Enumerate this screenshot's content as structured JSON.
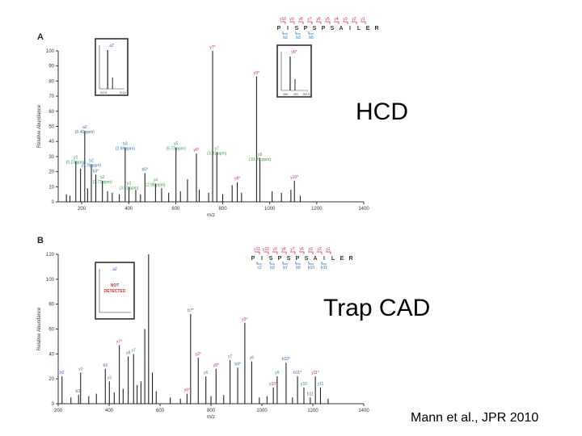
{
  "labels": {
    "hcd": "HCD",
    "trap_cad": "Trap CAD",
    "citation": "Mann et al., JPR 2010"
  },
  "colors": {
    "blue": "#2a6fb8",
    "green": "#2e9a3a",
    "red": "#cc3333",
    "black": "#222222"
  },
  "chart_data": [
    {
      "type": "bar",
      "panel": "A",
      "xlabel": "m/z",
      "ylabel": "Relative Abundance",
      "xlim": [
        100,
        1400
      ],
      "ylim": [
        0,
        100
      ],
      "xticks": [
        "200",
        "400",
        "600",
        "800",
        "1000",
        "1200",
        "1400"
      ],
      "yticks": [
        "0",
        "10",
        "20",
        "30",
        "40",
        "50",
        "60",
        "70",
        "80",
        "90",
        "100"
      ],
      "peptide": [
        "P",
        "I",
        "S",
        "P",
        "S",
        "P",
        "S",
        "A",
        "I",
        "L",
        "E",
        "R"
      ],
      "y_ions_top": [
        "y10",
        "y9",
        "y8",
        "y7",
        "y6",
        "y5",
        "y4",
        "y3",
        "y2",
        "y1"
      ],
      "b_ions_bottom": [
        "b2",
        "b3",
        "b5"
      ],
      "peaks": [
        {
          "mz": 175,
          "h": 27,
          "label": "y1",
          "sub": "(0.23 ppm)",
          "color": "green"
        },
        {
          "mz": 213,
          "h": 47,
          "label": "a2",
          "sub": "(0.45 ppm)",
          "color": "blue"
        },
        {
          "mz": 241,
          "h": 25,
          "label": "b2",
          "sub": "(0.76 ppm)",
          "color": "blue"
        },
        {
          "mz": 288,
          "h": 14,
          "label": "y2",
          "sub": "(3.72 ppm)",
          "color": "green"
        },
        {
          "mz": 260,
          "h": 18,
          "label": "b3*",
          "sub": "",
          "color": "blue"
        },
        {
          "mz": 385,
          "h": 36,
          "label": "b3",
          "sub": "(2.69 ppm)",
          "color": "blue"
        },
        {
          "mz": 401,
          "h": 10,
          "label": "y3",
          "sub": "(3.51 ppm)",
          "color": "green"
        },
        {
          "mz": 469,
          "h": 19,
          "label": "b5*",
          "sub": "",
          "color": "blue"
        },
        {
          "mz": 514,
          "h": 12,
          "label": "y4",
          "sub": "(2.88 ppm)",
          "color": "green"
        },
        {
          "mz": 601,
          "h": 36,
          "label": "y5",
          "sub": "(5.73 ppm)",
          "color": "green"
        },
        {
          "mz": 688,
          "h": 32,
          "label": "y6*",
          "sub": "",
          "color": "red"
        },
        {
          "mz": 775,
          "h": 33,
          "label": "y7",
          "sub": "(3.81 ppm)",
          "color": "green"
        },
        {
          "mz": 757,
          "h": 100,
          "label": "y7*",
          "sub": "",
          "color": "red"
        },
        {
          "mz": 862,
          "h": 13,
          "label": "y8*",
          "sub": "",
          "color": "red"
        },
        {
          "mz": 944,
          "h": 83,
          "label": "y9*",
          "sub": "",
          "color": "red"
        },
        {
          "mz": 958,
          "h": 29,
          "label": "y9",
          "sub": "(10.85 ppm)",
          "color": "green"
        },
        {
          "mz": 1105,
          "h": 14,
          "label": "y10*",
          "sub": "",
          "color": "red"
        },
        {
          "mz": 135,
          "h": 5,
          "label": "",
          "sub": "",
          "color": "black"
        },
        {
          "mz": 150,
          "h": 4,
          "label": "",
          "sub": "",
          "color": "black"
        },
        {
          "mz": 195,
          "h": 22,
          "label": "",
          "sub": "",
          "color": "black"
        },
        {
          "mz": 225,
          "h": 9,
          "label": "",
          "sub": "",
          "color": "black"
        },
        {
          "mz": 310,
          "h": 7,
          "label": "",
          "sub": "",
          "color": "black"
        },
        {
          "mz": 330,
          "h": 6,
          "label": "",
          "sub": "",
          "color": "black"
        },
        {
          "mz": 360,
          "h": 5,
          "label": "",
          "sub": "",
          "color": "black"
        },
        {
          "mz": 430,
          "h": 8,
          "label": "",
          "sub": "",
          "color": "black"
        },
        {
          "mz": 450,
          "h": 5,
          "label": "",
          "sub": "",
          "color": "black"
        },
        {
          "mz": 540,
          "h": 9,
          "label": "",
          "sub": "",
          "color": "black"
        },
        {
          "mz": 570,
          "h": 6,
          "label": "",
          "sub": "",
          "color": "black"
        },
        {
          "mz": 620,
          "h": 7,
          "label": "",
          "sub": "",
          "color": "black"
        },
        {
          "mz": 650,
          "h": 15,
          "label": "",
          "sub": "",
          "color": "black"
        },
        {
          "mz": 700,
          "h": 8,
          "label": "",
          "sub": "",
          "color": "black"
        },
        {
          "mz": 740,
          "h": 6,
          "label": "",
          "sub": "",
          "color": "black"
        },
        {
          "mz": 800,
          "h": 5,
          "label": "",
          "sub": "",
          "color": "black"
        },
        {
          "mz": 840,
          "h": 11,
          "label": "",
          "sub": "",
          "color": "black"
        },
        {
          "mz": 880,
          "h": 6,
          "label": "",
          "sub": "",
          "color": "black"
        },
        {
          "mz": 1010,
          "h": 7,
          "label": "",
          "sub": "",
          "color": "black"
        },
        {
          "mz": 1050,
          "h": 6,
          "label": "",
          "sub": "",
          "color": "black"
        },
        {
          "mz": 1090,
          "h": 8,
          "label": "",
          "sub": "",
          "color": "black"
        },
        {
          "mz": 1130,
          "h": 4,
          "label": "",
          "sub": "",
          "color": "black"
        }
      ],
      "insets": [
        {
          "label": "a2",
          "ticks": [
            "212.8",
            "213.0"
          ],
          "color": "blue"
        },
        {
          "label": "y6*",
          "ticks": [
            "250",
            "251",
            "251.5"
          ],
          "color": "red"
        }
      ]
    },
    {
      "type": "bar",
      "panel": "B",
      "xlabel": "m/z",
      "ylabel": "Relative Abundance",
      "xlim": [
        200,
        1400
      ],
      "ylim": [
        0,
        120
      ],
      "xticks": [
        "200",
        "400",
        "600",
        "800",
        "1000",
        "1200",
        "1400"
      ],
      "yticks": [
        "0",
        "20",
        "40",
        "60",
        "80",
        "100",
        "120"
      ],
      "peptide": [
        "P",
        "I",
        "S",
        "P",
        "S",
        "P",
        "S",
        "A",
        "I",
        "L",
        "E",
        "R"
      ],
      "y_ions_top": [
        "y11",
        "y10",
        "y9",
        "y8",
        "y7",
        "y6",
        "y3",
        "y2",
        "y1"
      ],
      "b_ions_bottom": [
        "c2",
        "b3",
        "b7",
        "b9",
        "b10",
        "b11"
      ],
      "inset_label": "a2",
      "inset_text": [
        "NOT",
        "DETECTED"
      ],
      "peaks": [
        {
          "mz": 215,
          "h": 22,
          "label": "b2",
          "color": "blue"
        },
        {
          "mz": 288,
          "h": 25,
          "label": "y2",
          "color": "green"
        },
        {
          "mz": 280,
          "h": 7,
          "label": "b3*",
          "color": "blue"
        },
        {
          "mz": 385,
          "h": 28,
          "label": "b3",
          "color": "blue"
        },
        {
          "mz": 401,
          "h": 18,
          "label": "y3",
          "color": "green"
        },
        {
          "mz": 440,
          "h": 47,
          "label": "y7*",
          "color": "red"
        },
        {
          "mz": 475,
          "h": 38,
          "label": "y8",
          "color": "green"
        },
        {
          "mz": 496,
          "h": 40,
          "label": "y7",
          "color": "green"
        },
        {
          "mz": 555,
          "h": 120,
          "label": "",
          "color": "black"
        },
        {
          "mz": 540,
          "h": 60,
          "label": "",
          "color": "black"
        },
        {
          "mz": 720,
          "h": 72,
          "label": "b7*",
          "color": "blue"
        },
        {
          "mz": 706,
          "h": 8,
          "label": "y6*",
          "color": "red"
        },
        {
          "mz": 750,
          "h": 37,
          "label": "y2*",
          "color": "red"
        },
        {
          "mz": 780,
          "h": 22,
          "label": "y6",
          "color": "green"
        },
        {
          "mz": 820,
          "h": 28,
          "label": "y8*",
          "color": "red"
        },
        {
          "mz": 875,
          "h": 35,
          "label": "y7",
          "color": "green"
        },
        {
          "mz": 905,
          "h": 29,
          "label": "b9*",
          "color": "blue"
        },
        {
          "mz": 933,
          "h": 65,
          "label": "y9*",
          "color": "red"
        },
        {
          "mz": 960,
          "h": 34,
          "label": "y8",
          "color": "green"
        },
        {
          "mz": 1045,
          "h": 13,
          "label": "y10*",
          "color": "red"
        },
        {
          "mz": 1060,
          "h": 22,
          "label": "y9",
          "color": "green"
        },
        {
          "mz": 1095,
          "h": 33,
          "label": "b10*",
          "color": "blue"
        },
        {
          "mz": 1140,
          "h": 22,
          "label": "b11*",
          "color": "blue"
        },
        {
          "mz": 1165,
          "h": 13,
          "label": "y10",
          "color": "green"
        },
        {
          "mz": 1190,
          "h": 5,
          "label": "b11",
          "color": "blue"
        },
        {
          "mz": 1210,
          "h": 22,
          "label": "y11*",
          "color": "red"
        },
        {
          "mz": 1230,
          "h": 13,
          "label": "y11",
          "color": "green"
        },
        {
          "mz": 250,
          "h": 5,
          "label": "",
          "color": "black"
        },
        {
          "mz": 320,
          "h": 6,
          "label": "",
          "color": "black"
        },
        {
          "mz": 350,
          "h": 8,
          "label": "",
          "color": "black"
        },
        {
          "mz": 420,
          "h": 9,
          "label": "",
          "color": "black"
        },
        {
          "mz": 455,
          "h": 12,
          "label": "",
          "color": "black"
        },
        {
          "mz": 510,
          "h": 15,
          "label": "",
          "color": "black"
        },
        {
          "mz": 525,
          "h": 18,
          "label": "",
          "color": "black"
        },
        {
          "mz": 570,
          "h": 25,
          "label": "",
          "color": "black"
        },
        {
          "mz": 585,
          "h": 10,
          "label": "",
          "color": "black"
        },
        {
          "mz": 640,
          "h": 5,
          "label": "",
          "color": "black"
        },
        {
          "mz": 680,
          "h": 4,
          "label": "",
          "color": "black"
        },
        {
          "mz": 800,
          "h": 6,
          "label": "",
          "color": "black"
        },
        {
          "mz": 850,
          "h": 7,
          "label": "",
          "color": "black"
        },
        {
          "mz": 990,
          "h": 5,
          "label": "",
          "color": "black"
        },
        {
          "mz": 1020,
          "h": 6,
          "label": "",
          "color": "black"
        },
        {
          "mz": 1120,
          "h": 5,
          "label": "",
          "color": "black"
        },
        {
          "mz": 1260,
          "h": 4,
          "label": "",
          "color": "black"
        }
      ]
    }
  ]
}
